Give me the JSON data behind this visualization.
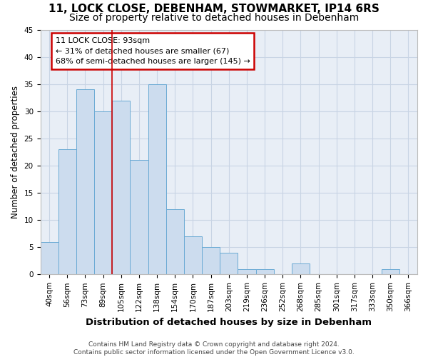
{
  "title1": "11, LOCK CLOSE, DEBENHAM, STOWMARKET, IP14 6RS",
  "title2": "Size of property relative to detached houses in Debenham",
  "xlabel": "Distribution of detached houses by size in Debenham",
  "ylabel": "Number of detached properties",
  "categories": [
    "40sqm",
    "56sqm",
    "73sqm",
    "89sqm",
    "105sqm",
    "122sqm",
    "138sqm",
    "154sqm",
    "170sqm",
    "187sqm",
    "203sqm",
    "219sqm",
    "236sqm",
    "252sqm",
    "268sqm",
    "285sqm",
    "301sqm",
    "317sqm",
    "333sqm",
    "350sqm",
    "366sqm"
  ],
  "values": [
    6,
    23,
    34,
    30,
    32,
    21,
    35,
    12,
    7,
    5,
    4,
    1,
    1,
    0,
    2,
    0,
    0,
    0,
    0,
    1,
    0
  ],
  "bar_color": "#ccdcee",
  "bar_edge_color": "#6aaad4",
  "grid_color": "#c8d4e4",
  "background_color": "#e8eef6",
  "vline_x_index": 3.5,
  "vline_color": "#cc0000",
  "annotation_line1": "11 LOCK CLOSE: 93sqm",
  "annotation_line2": "← 31% of detached houses are smaller (67)",
  "annotation_line3": "68% of semi-detached houses are larger (145) →",
  "annotation_box_color": "#ffffff",
  "annotation_box_edge_color": "#cc0000",
  "ylim": [
    0,
    45
  ],
  "yticks": [
    0,
    5,
    10,
    15,
    20,
    25,
    30,
    35,
    40,
    45
  ],
  "footnote": "Contains HM Land Registry data © Crown copyright and database right 2024.\nContains public sector information licensed under the Open Government Licence v3.0.",
  "title_fontsize": 11,
  "subtitle_fontsize": 10,
  "xlabel_fontsize": 9.5,
  "ylabel_fontsize": 8.5,
  "tick_fontsize": 7.5,
  "annotation_fontsize": 8,
  "footnote_fontsize": 6.5
}
